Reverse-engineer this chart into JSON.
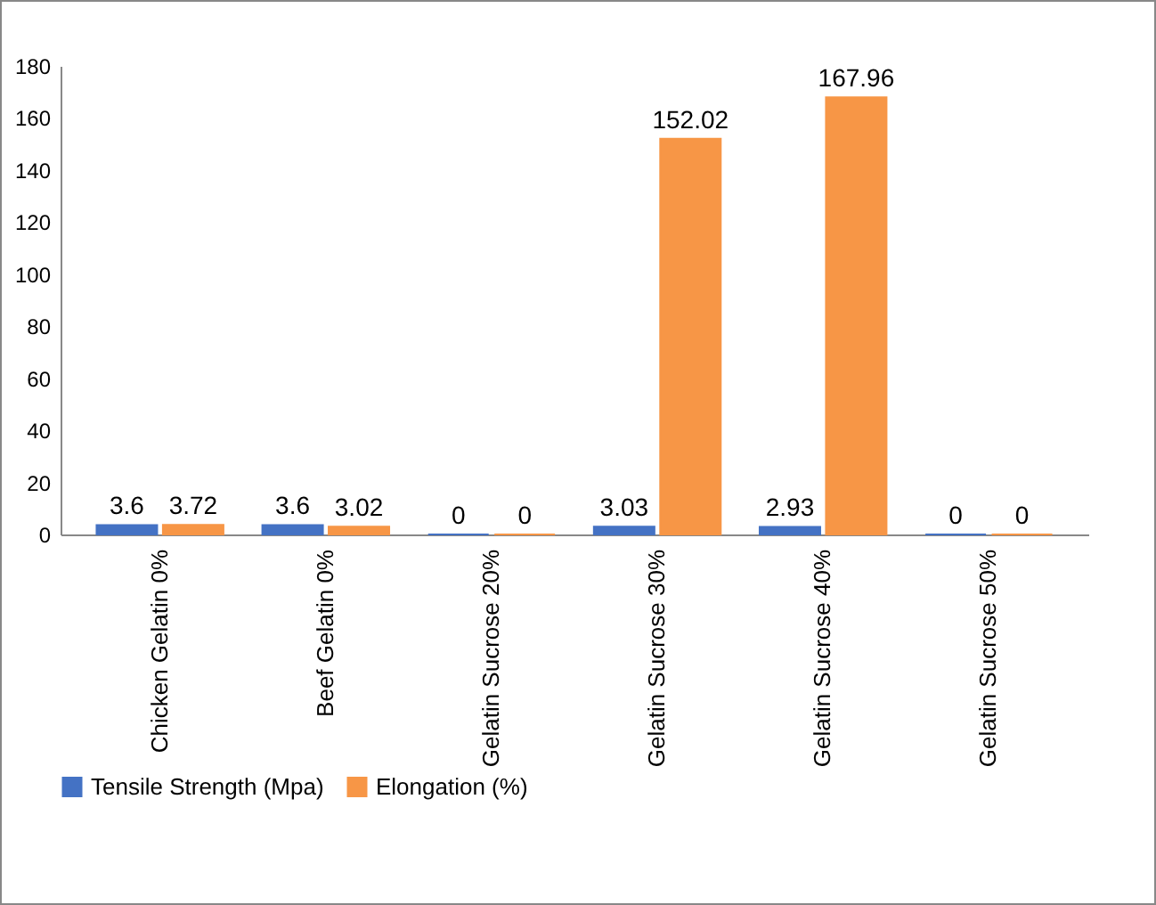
{
  "chart_data": {
    "type": "bar",
    "categories": [
      "Chicken Gelatin 0%",
      "Beef Gelatin 0%",
      "Gelatin Sucrose 20%",
      "Gelatin Sucrose 30%",
      "Gelatin Sucrose 40%",
      "Gelatin Sucrose 50%"
    ],
    "series": [
      {
        "name": "Tensile Strength (Mpa)",
        "color": "#4472c4",
        "values": [
          3.6,
          3.6,
          0,
          3.03,
          2.93,
          0
        ]
      },
      {
        "name": "Elongation (%)",
        "color": "#f79646",
        "values": [
          3.72,
          3.02,
          0,
          152.02,
          167.96,
          0
        ]
      }
    ],
    "ylim": [
      0,
      180
    ],
    "yticks": [
      0,
      20,
      40,
      60,
      80,
      100,
      120,
      140,
      160,
      180
    ],
    "grid": false,
    "legend": "bottom",
    "data_labels": true
  }
}
